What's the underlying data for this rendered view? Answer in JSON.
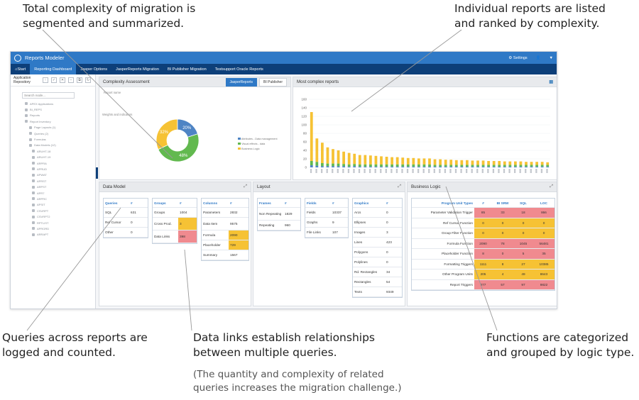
{
  "annotations": {
    "top_left": [
      "Total complexity of migration is",
      "segmented and summarized."
    ],
    "top_right": [
      "Individual reports are listed",
      "and ranked by complexity."
    ],
    "bottom_left": [
      "Queries across reports are",
      "logged and counted."
    ],
    "bottom_middle": [
      "Data links establish relationships",
      "between multiple queries."
    ],
    "bottom_middle_note": [
      "(The quantity and complexity of related",
      "queries increases the migration challenge.)"
    ],
    "bottom_right": [
      "Functions are categorized",
      "and grouped by logic type."
    ]
  },
  "app": {
    "title": "Reports Modeler",
    "settings_label": "Settings",
    "user_icon": "user-icon",
    "menu_icon": "chevron-down-icon"
  },
  "nav": {
    "start": "Start",
    "tabs": [
      "Reporting Dashboard",
      "Jasper Options",
      "JasperReports Migration",
      "BI Publisher Migration",
      "Testsupport Oracle Reports"
    ]
  },
  "sidebar": {
    "title": "Application Repository",
    "search_placeholder": "Search node...",
    "tree_items": [
      "APEX Applications",
      "BI_REPS",
      "Reports",
      "Report Inventory",
      "Page Layouts (1)",
      "Queries (2)",
      "Formulas",
      "Data Models (12)",
      "ARUHT-18",
      "ARUHT-19",
      "ARPRA",
      "APRUD",
      "APWAT",
      "APRST",
      "ARPST",
      "APR7",
      "ARPRC",
      "APSIT",
      "CSVRPT",
      "CSVRPT2",
      "RPTLIST",
      "APRORD",
      "ARRAPT"
    ]
  },
  "complexity": {
    "title": "Complexity Assessment",
    "buttons": [
      "JasperReports",
      "BI Publisher"
    ],
    "report_name_label": "Report name",
    "weights_label": "Weights and indicators",
    "pie_labels": [
      "32%",
      "20%",
      "48%"
    ],
    "legend": [
      "Attributes - Data management",
      "Visual effects - data",
      "Business Logic"
    ],
    "colors": [
      "#f6c234",
      "#4e84c4",
      "#62b94f"
    ],
    "values": [
      32,
      20,
      48
    ]
  },
  "most_complex": {
    "title": "Most complex reports",
    "export_icon": "excel-export-icon"
  },
  "chart_data": {
    "type": "bar",
    "stacked": true,
    "ylim": [
      0,
      160
    ],
    "yticks": [
      0,
      20,
      40,
      60,
      80,
      100,
      120,
      140,
      160
    ],
    "categories": [
      "R1",
      "R2",
      "R3",
      "R4",
      "R5",
      "R6",
      "R7",
      "R8",
      "R9",
      "R10",
      "R11",
      "R12",
      "R13",
      "R14",
      "R15",
      "R16",
      "R17",
      "R18",
      "R19",
      "R20",
      "R21",
      "R22",
      "R23",
      "R24",
      "R25",
      "R26",
      "R27",
      "R28",
      "R29",
      "R30",
      "R31",
      "R32",
      "R33",
      "R34",
      "R35",
      "R36",
      "R37",
      "R38",
      "R39",
      "R40",
      "R41",
      "R42",
      "R43",
      "R44",
      "R45"
    ],
    "series": [
      {
        "color": "#4e84c4",
        "values": [
          5,
          4,
          3,
          3,
          3,
          3,
          3,
          2,
          3,
          2,
          2,
          2,
          2,
          2,
          2,
          2,
          2,
          2,
          2,
          2,
          2,
          2,
          2,
          2,
          2,
          2,
          2,
          2,
          2,
          2,
          2,
          2,
          2,
          2,
          2,
          2,
          2,
          2,
          2,
          2,
          2,
          2,
          2,
          2,
          2
        ]
      },
      {
        "color": "#62b94f",
        "values": [
          10,
          9,
          7,
          6,
          6,
          6,
          5,
          5,
          5,
          5,
          5,
          5,
          5,
          5,
          5,
          5,
          5,
          5,
          5,
          5,
          5,
          5,
          5,
          4,
          4,
          4,
          4,
          4,
          4,
          4,
          4,
          4,
          4,
          4,
          4,
          4,
          4,
          4,
          4,
          4,
          4,
          4,
          4,
          4,
          4
        ]
      },
      {
        "color": "#f6c234",
        "values": [
          115,
          55,
          48,
          38,
          34,
          31,
          29,
          27,
          24,
          22,
          22,
          21,
          20,
          19,
          18,
          17,
          17,
          16,
          15,
          15,
          14,
          14,
          14,
          13,
          13,
          12,
          12,
          11,
          11,
          11,
          10,
          10,
          10,
          9,
          9,
          9,
          8,
          8,
          8,
          8,
          7,
          7,
          7,
          7,
          6
        ]
      }
    ]
  },
  "data_model": {
    "title": "Data Model",
    "queries": {
      "headers": [
        "Queries",
        "#"
      ],
      "rows": [
        [
          "SQL",
          "631"
        ],
        [
          "Ref Cursor",
          "0"
        ],
        [
          "Other",
          "0"
        ]
      ]
    },
    "groups": {
      "headers": [
        "Groups",
        "#"
      ],
      "rows": [
        [
          "Groups",
          "1004"
        ],
        [
          "Cross Prod.",
          "3"
        ],
        [
          "Data Links",
          "398"
        ]
      ]
    },
    "columns": {
      "headers": [
        "Columns",
        "#"
      ],
      "rows": [
        [
          "Parameters",
          "2832"
        ],
        [
          "Data Item",
          "9575"
        ],
        [
          "Formula",
          "2090"
        ],
        [
          "Placeholder",
          "729"
        ],
        [
          "Summary",
          "1567"
        ]
      ]
    }
  },
  "layout": {
    "title": "Layout",
    "frames": {
      "headers": [
        "Frames",
        "#"
      ],
      "rows": [
        [
          "Non Repeating",
          "1829"
        ],
        [
          "Repeating",
          "960"
        ]
      ]
    },
    "fields": {
      "headers": [
        "Fields",
        "#"
      ],
      "rows": [
        [
          "Fields",
          "10337"
        ],
        [
          "Graphs",
          "9"
        ],
        [
          "File Links",
          "107"
        ]
      ]
    },
    "graphics": {
      "headers": [
        "Graphics",
        "#"
      ],
      "rows": [
        [
          "Arcs",
          "0"
        ],
        [
          "Ellipses",
          "0"
        ],
        [
          "Images",
          "3"
        ],
        [
          "Lines",
          "423"
        ],
        [
          "Polygons",
          "0"
        ],
        [
          "Polylines",
          "0"
        ],
        [
          "Rd. Rectangles",
          "34"
        ],
        [
          "Rectangles",
          "54"
        ],
        [
          "Texts",
          "9349"
        ]
      ]
    }
  },
  "business_logic": {
    "title": "Business Logic",
    "headers": [
      "Program Unit Types",
      "#",
      "BI SRW",
      "SQL",
      "LOC"
    ],
    "rows": [
      {
        "cells": [
          "Parameter Validation Trigger",
          "85",
          "33",
          "18",
          "866"
        ],
        "status": "red"
      },
      {
        "cells": [
          "Ref Cursor Function",
          "0",
          "0",
          "0",
          "0"
        ],
        "status": "yel"
      },
      {
        "cells": [
          "Group Filter Function",
          "0",
          "0",
          "0",
          "0"
        ],
        "status": "yel"
      },
      {
        "cells": [
          "Formula Function",
          "2090",
          "78",
          "1045",
          "56481"
        ],
        "status": "red"
      },
      {
        "cells": [
          "Placeholder Function",
          "8",
          "0",
          "5",
          "35"
        ],
        "status": "red"
      },
      {
        "cells": [
          "Formatting Triggers",
          "1111",
          "8",
          "27",
          "10385"
        ],
        "status": "yel"
      },
      {
        "cells": [
          "Other Program Units",
          "205",
          "4",
          "49",
          "8643"
        ],
        "status": "yel"
      },
      {
        "cells": [
          "Report Triggers",
          "277",
          "57",
          "97",
          "9822"
        ],
        "status": "red"
      }
    ]
  }
}
